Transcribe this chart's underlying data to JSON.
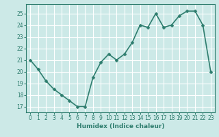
{
  "x": [
    0,
    1,
    2,
    3,
    4,
    5,
    6,
    7,
    8,
    9,
    10,
    11,
    12,
    13,
    14,
    15,
    16,
    17,
    18,
    19,
    20,
    21,
    22,
    23
  ],
  "y": [
    21.0,
    20.2,
    19.2,
    18.5,
    18.0,
    17.5,
    17.0,
    17.0,
    19.5,
    20.8,
    21.5,
    21.0,
    21.5,
    22.5,
    24.0,
    23.8,
    25.0,
    23.8,
    24.0,
    24.8,
    25.2,
    25.2,
    24.0,
    20.0
  ],
  "line_color": "#2e7d6e",
  "marker": "D",
  "marker_size": 2.5,
  "line_width": 1.2,
  "xlabel": "Humidex (Indice chaleur)",
  "xlim": [
    -0.5,
    23.5
  ],
  "ylim": [
    16.5,
    25.8
  ],
  "yticks": [
    17,
    18,
    19,
    20,
    21,
    22,
    23,
    24,
    25
  ],
  "xticks": [
    0,
    1,
    2,
    3,
    4,
    5,
    6,
    7,
    8,
    9,
    10,
    11,
    12,
    13,
    14,
    15,
    16,
    17,
    18,
    19,
    20,
    21,
    22,
    23
  ],
  "bg_color": "#cce9e7",
  "grid_color": "#ffffff",
  "axis_color": "#2e7d6e",
  "tick_color": "#2e7d6e",
  "label_color": "#2e7d6e",
  "xlabel_fontsize": 6.5,
  "tick_fontsize": 5.5
}
